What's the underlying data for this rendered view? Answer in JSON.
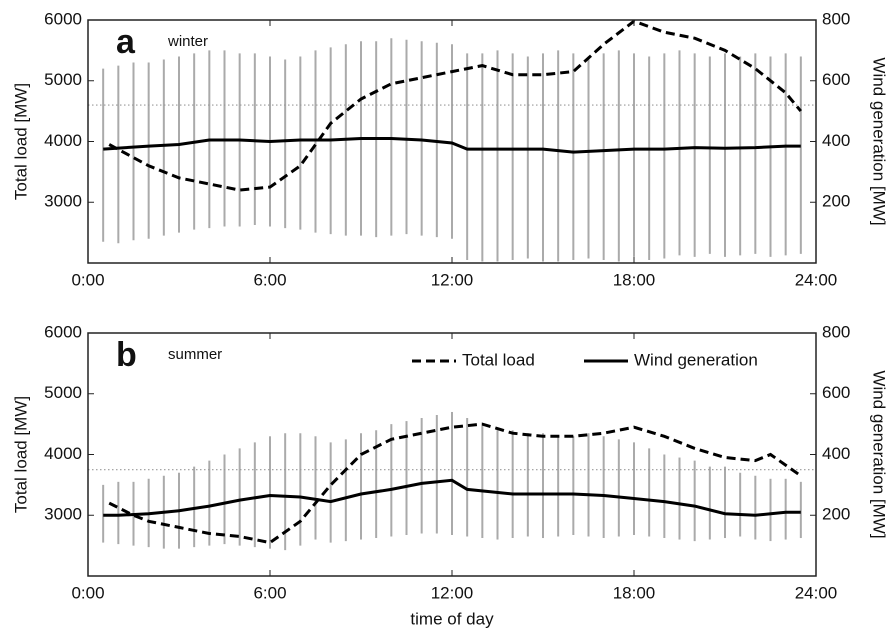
{
  "chart_data": [
    {
      "type": "line",
      "panel_label": "a",
      "season": "winter",
      "ylabel": "Total load [MW]",
      "y2label": "Wind generation [MW]",
      "xlim": [
        0,
        24
      ],
      "xticks": [
        {
          "value": 0,
          "label": "0:00"
        },
        {
          "value": 6,
          "label": "6:00"
        },
        {
          "value": 12,
          "label": "12:00"
        },
        {
          "value": 18,
          "label": "18:00"
        },
        {
          "value": 24,
          "label": "24:00"
        }
      ],
      "ylim": [
        2000,
        6000
      ],
      "yticks": [
        3000,
        4000,
        5000,
        6000
      ],
      "y2lim": [
        0,
        800
      ],
      "y2ticks": [
        200,
        400,
        600,
        800
      ],
      "hline": 4600,
      "legend": false,
      "series": [
        {
          "dash": true,
          "color": "#000000",
          "axis": "y",
          "x": [
            0.7,
            2,
            3,
            4,
            5,
            6,
            7,
            8,
            9,
            10,
            11,
            12,
            13,
            14,
            15,
            16,
            17,
            18,
            19,
            20,
            21,
            22,
            23,
            23.5
          ],
          "values": [
            3950,
            3600,
            3400,
            3300,
            3200,
            3250,
            3600,
            4300,
            4700,
            4950,
            5050,
            5150,
            5250,
            5100,
            5100,
            5150,
            5600,
            5980,
            5800,
            5700,
            5500,
            5200,
            4800,
            4500
          ]
        },
        {
          "dash": false,
          "color": "#000000",
          "axis": "y2",
          "x": [
            0.5,
            2,
            3,
            4,
            5,
            6,
            7,
            8,
            9,
            10,
            11,
            12,
            12.5,
            14,
            15,
            16,
            17,
            18,
            19,
            20,
            21,
            22,
            23,
            23.5
          ],
          "values": [
            375,
            385,
            390,
            405,
            405,
            400,
            405,
            405,
            410,
            410,
            405,
            395,
            375,
            375,
            375,
            365,
            370,
            375,
            375,
            380,
            378,
            380,
            385,
            385
          ]
        }
      ],
      "ranges": {
        "color": "#aaaaaa",
        "axis": "y2",
        "x": [
          0.5,
          1,
          1.5,
          2,
          2.5,
          3,
          3.5,
          4,
          4.5,
          5,
          5.5,
          6,
          6.5,
          7,
          7.5,
          8,
          8.5,
          9,
          9.5,
          10,
          10.5,
          11,
          11.5,
          12,
          12.5,
          13,
          13.5,
          14,
          14.5,
          15,
          15.5,
          16,
          16.5,
          17,
          17.5,
          18,
          18.5,
          19,
          19.5,
          20,
          20.5,
          21,
          21.5,
          22,
          22.5,
          23,
          23.5
        ],
        "low": [
          70,
          65,
          75,
          80,
          90,
          100,
          110,
          115,
          120,
          120,
          125,
          120,
          115,
          110,
          100,
          95,
          90,
          90,
          85,
          90,
          95,
          90,
          85,
          80,
          10,
          5,
          5,
          10,
          15,
          5,
          5,
          10,
          15,
          10,
          5,
          20,
          10,
          15,
          25,
          20,
          30,
          20,
          25,
          30,
          20,
          25,
          30
        ],
        "high": [
          640,
          650,
          660,
          660,
          670,
          680,
          690,
          700,
          700,
          690,
          690,
          680,
          670,
          680,
          700,
          710,
          720,
          730,
          730,
          740,
          735,
          730,
          725,
          720,
          690,
          690,
          700,
          690,
          680,
          690,
          700,
          690,
          680,
          690,
          700,
          690,
          680,
          690,
          700,
          690,
          680,
          690,
          680,
          690,
          680,
          690,
          680
        ]
      }
    },
    {
      "type": "line",
      "panel_label": "b",
      "season": "summer",
      "ylabel": "Total load [MW]",
      "y2label": "Wind generation [MW]",
      "xlabel": "time of day",
      "xlim": [
        0,
        24
      ],
      "xticks": [
        {
          "value": 0,
          "label": "0:00"
        },
        {
          "value": 6,
          "label": "6:00"
        },
        {
          "value": 12,
          "label": "12:00"
        },
        {
          "value": 18,
          "label": "18:00"
        },
        {
          "value": 24,
          "label": "24:00"
        }
      ],
      "ylim": [
        2000,
        6000
      ],
      "yticks": [
        3000,
        4000,
        5000,
        6000
      ],
      "y2lim": [
        0,
        800
      ],
      "y2ticks": [
        200,
        400,
        600,
        800
      ],
      "hline": 3750,
      "legend": true,
      "legend_corner": "upper right",
      "series": [
        {
          "name": "Total load",
          "dash": true,
          "color": "#000000",
          "axis": "y",
          "x": [
            0.7,
            1.5,
            2,
            3,
            4,
            5,
            6,
            7,
            8,
            9,
            10,
            11,
            12,
            13,
            14,
            15,
            16,
            17,
            18,
            19,
            20,
            21,
            22,
            22.5,
            23.5
          ],
          "values": [
            3200,
            3000,
            2900,
            2800,
            2700,
            2650,
            2550,
            2900,
            3500,
            4000,
            4250,
            4350,
            4450,
            4500,
            4350,
            4300,
            4300,
            4350,
            4450,
            4300,
            4100,
            3950,
            3900,
            4000,
            3650
          ]
        },
        {
          "name": "Wind generation",
          "dash": false,
          "color": "#000000",
          "axis": "y2",
          "x": [
            0.5,
            1,
            2,
            3,
            4,
            5,
            6,
            7,
            8,
            9,
            10,
            11,
            12,
            12.5,
            14,
            15,
            16,
            17,
            18,
            19,
            20,
            21,
            22,
            23,
            23.5
          ],
          "values": [
            200,
            200,
            205,
            215,
            230,
            250,
            265,
            260,
            245,
            270,
            285,
            305,
            315,
            285,
            270,
            270,
            270,
            265,
            255,
            245,
            230,
            205,
            200,
            210,
            210
          ]
        }
      ],
      "ranges": {
        "color": "#aaaaaa",
        "axis": "y2",
        "x": [
          0.5,
          1,
          1.5,
          2,
          2.5,
          3,
          3.5,
          4,
          4.5,
          5,
          5.5,
          6,
          6.5,
          7,
          7.5,
          8,
          8.5,
          9,
          9.5,
          10,
          10.5,
          11,
          11.5,
          12,
          12.5,
          13,
          13.5,
          14,
          14.5,
          15,
          15.5,
          16,
          16.5,
          17,
          17.5,
          18,
          18.5,
          19,
          19.5,
          20,
          20.5,
          21,
          21.5,
          22,
          22.5,
          23,
          23.5
        ],
        "low": [
          110,
          105,
          100,
          95,
          90,
          90,
          95,
          100,
          105,
          100,
          95,
          90,
          85,
          100,
          120,
          110,
          115,
          120,
          125,
          130,
          135,
          140,
          140,
          135,
          130,
          125,
          120,
          125,
          130,
          125,
          130,
          135,
          130,
          125,
          130,
          135,
          130,
          125,
          120,
          115,
          120,
          125,
          130,
          120,
          115,
          120,
          125
        ],
        "high": [
          300,
          310,
          310,
          320,
          330,
          340,
          360,
          380,
          400,
          420,
          440,
          460,
          470,
          470,
          460,
          440,
          450,
          470,
          480,
          500,
          510,
          520,
          530,
          540,
          520,
          500,
          480,
          480,
          470,
          470,
          460,
          460,
          470,
          460,
          450,
          440,
          420,
          400,
          390,
          380,
          360,
          360,
          340,
          330,
          320,
          320,
          310
        ]
      }
    }
  ]
}
